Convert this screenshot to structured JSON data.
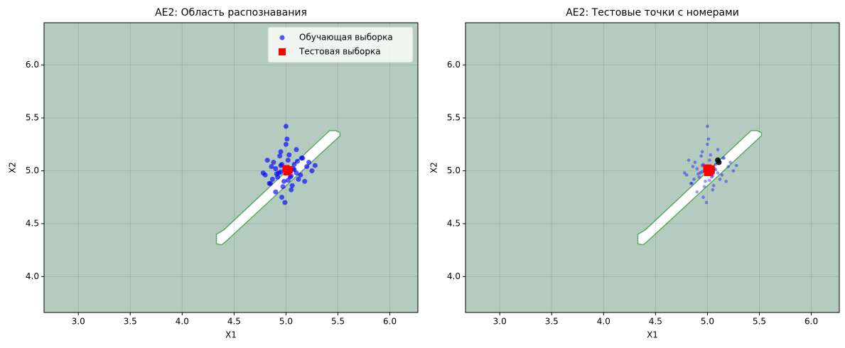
{
  "chart_data": [
    {
      "type": "scatter",
      "title": "AE2: Область распознавания",
      "x_label": "X1",
      "y_label": "X2",
      "xlim": [
        2.67,
        6.27
      ],
      "ylim": [
        3.66,
        6.4
      ],
      "xticks": [
        {
          "value": 3,
          "label": "3.0"
        },
        3.5,
        {
          "value": 4,
          "label": "4.0"
        },
        4.5,
        {
          "value": 5,
          "label": "5.0"
        },
        5.5,
        {
          "value": 6,
          "label": "6.0"
        }
      ],
      "yticks": [
        {
          "value": 4,
          "label": "4.0"
        },
        4.5,
        {
          "value": 5,
          "label": "5.0"
        },
        5.5,
        {
          "value": 6,
          "label": "6.0"
        }
      ],
      "grid": true,
      "legend": "upper right",
      "background": "#b3ccbf",
      "region": {
        "color": "#ffffff",
        "edge": "#5fa85f",
        "x": [
          4.33,
          4.38,
          4.42,
          5.52,
          5.52,
          5.48,
          5.42,
          4.4,
          4.33
        ],
        "y": [
          4.31,
          4.3,
          4.33,
          5.33,
          5.36,
          5.38,
          5.38,
          4.44,
          4.4
        ]
      },
      "series": [
        {
          "name": "Обучающая выборка",
          "color": "#0000ff",
          "marker": "o",
          "size": 3.5,
          "alpha": 0.65,
          "x": [
            5.0,
            4.95,
            5.05,
            4.9,
            5.1,
            4.98,
            5.02,
            5.08,
            4.92,
            5.15,
            4.85,
            5.2,
            4.8,
            5.25,
            4.95,
            5.05,
            5.0,
            4.88,
            5.12,
            4.97,
            5.03,
            4.93,
            5.07,
            5.18,
            4.82,
            5.0,
            4.96,
            5.04,
            5.1,
            4.9,
            5.28,
            4.78,
            4.99,
            5.01,
            5.06,
            4.94,
            5.14,
            4.86,
            5.22,
            4.87,
            4.95,
            5.08,
            5.0,
            4.91,
            5.11,
            5.02,
            4.84,
            5.16,
            4.96,
            5.04
          ],
          "y": [
            5.0,
            5.05,
            4.95,
            5.02,
            4.98,
            4.9,
            5.1,
            5.06,
            4.94,
            5.12,
            4.88,
            5.04,
            4.96,
            5.0,
            5.18,
            4.82,
            5.25,
            5.08,
            4.92,
            4.85,
            5.15,
            4.98,
            5.02,
            4.9,
            5.1,
            5.42,
            4.75,
            5.0,
            5.2,
            4.8,
            5.05,
            4.98,
            4.7,
            5.3,
            4.86,
            5.14,
            4.96,
            5.04,
            5.08,
            4.92,
            4.99,
            5.01,
            5.03,
            4.97,
            5.09,
            4.91,
            4.88,
            5.12,
            5.06,
            4.94
          ]
        },
        {
          "name": "Тестовая выборка",
          "color": "#ff0000",
          "marker": "s",
          "size": 5,
          "alpha": 1,
          "x": [
            5.0,
            5.02,
            5.03,
            5.01
          ],
          "y": [
            5.02,
            5.0,
            5.01,
            4.99
          ]
        }
      ]
    },
    {
      "type": "scatter",
      "title": "AE2: Тестовые точки с номерами",
      "x_label": "X1",
      "y_label": "X2",
      "xlim": [
        2.67,
        6.27
      ],
      "ylim": [
        3.66,
        6.4
      ],
      "xticks": [
        {
          "value": 3,
          "label": "3.0"
        },
        3.5,
        {
          "value": 4,
          "label": "4.0"
        },
        4.5,
        {
          "value": 5,
          "label": "5.0"
        },
        5.5,
        {
          "value": 6,
          "label": "6.0"
        }
      ],
      "yticks": [
        {
          "value": 4,
          "label": "4.0"
        },
        4.5,
        {
          "value": 5,
          "label": "5.0"
        },
        5.5,
        {
          "value": 6,
          "label": "6.0"
        }
      ],
      "grid": true,
      "background": "#b3ccbf",
      "region": {
        "color": "#ffffff",
        "edge": "#5fa85f",
        "x": [
          4.33,
          4.38,
          4.42,
          5.52,
          5.52,
          5.48,
          5.42,
          4.4,
          4.33
        ],
        "y": [
          4.31,
          4.3,
          4.33,
          5.33,
          5.36,
          5.38,
          5.38,
          4.44,
          4.4
        ]
      },
      "series": [
        {
          "color": "#0000ff",
          "marker": "o",
          "size": 2.3,
          "alpha": 0.4,
          "x": [
            5.0,
            4.95,
            5.05,
            4.9,
            5.1,
            4.98,
            5.02,
            5.08,
            4.92,
            5.15,
            4.85,
            5.2,
            4.8,
            5.25,
            4.95,
            5.05,
            5.0,
            4.88,
            5.12,
            4.97,
            5.03,
            4.93,
            5.07,
            5.18,
            4.82,
            5.0,
            4.96,
            5.04,
            5.1,
            4.9,
            5.28,
            4.78,
            4.99,
            5.01,
            5.06,
            4.94,
            5.14,
            4.86,
            5.22,
            4.87,
            4.95,
            5.08,
            5.0,
            4.91,
            5.11,
            5.02,
            4.84,
            5.16,
            4.96,
            5.04
          ],
          "y": [
            5.0,
            5.05,
            4.95,
            5.02,
            4.98,
            4.9,
            5.1,
            5.06,
            4.94,
            5.12,
            4.88,
            5.04,
            4.96,
            5.0,
            5.18,
            4.82,
            5.25,
            5.08,
            4.92,
            4.85,
            5.15,
            4.98,
            5.02,
            4.9,
            5.1,
            5.42,
            4.75,
            5.0,
            5.2,
            4.8,
            5.05,
            4.98,
            4.7,
            5.3,
            4.86,
            5.14,
            4.96,
            5.04,
            5.08,
            4.92,
            4.99,
            5.01,
            5.03,
            4.97,
            5.09,
            4.91,
            4.88,
            5.12,
            5.06,
            4.94
          ]
        },
        {
          "color": "#ff0000",
          "marker": "s",
          "size": 6,
          "alpha": 1,
          "x": [
            5.0,
            5.02,
            5.03,
            5.01
          ],
          "y": [
            5.02,
            5.0,
            5.01,
            4.99
          ]
        },
        {
          "color": "#000000",
          "marker": "o",
          "size": 4,
          "alpha": 0.85,
          "x": [
            5.1,
            5.11
          ],
          "y": [
            5.1,
            5.08
          ]
        }
      ]
    }
  ]
}
